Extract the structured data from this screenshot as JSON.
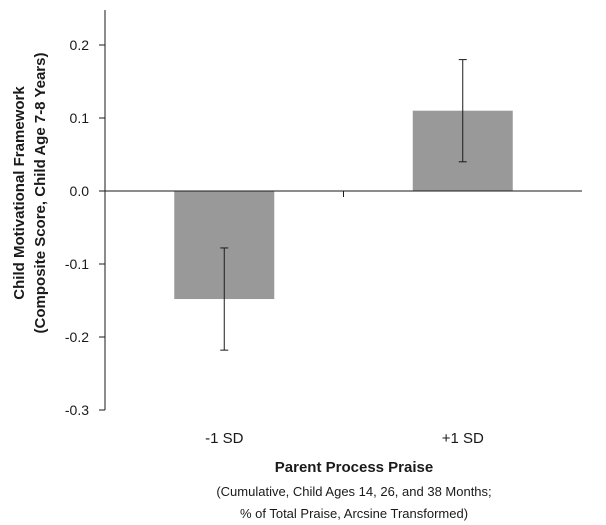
{
  "chart_data": {
    "type": "bar",
    "categories": [
      "-1 SD",
      "+1 SD"
    ],
    "values": [
      -0.148,
      0.11
    ],
    "error_low": [
      -0.218,
      0.04
    ],
    "error_high": [
      -0.078,
      0.18
    ],
    "ylabel_line1": "Child Motivational Framework",
    "ylabel_line2": "(Composite Score, Child Age 7-8 Years)",
    "xlabel": "Parent Process Praise",
    "xlabel_sub1": "(Cumulative, Child Ages 14, 26, and 38 Months;",
    "xlabel_sub2": "% of Total Praise, Arcsine Transformed)",
    "ylim": [
      -0.3,
      0.2
    ],
    "yticks": [
      "-0.3",
      "-0.2",
      "-0.1",
      "0.0",
      "0.1",
      "0.2"
    ],
    "bar_color": "#999999",
    "grid": false
  }
}
